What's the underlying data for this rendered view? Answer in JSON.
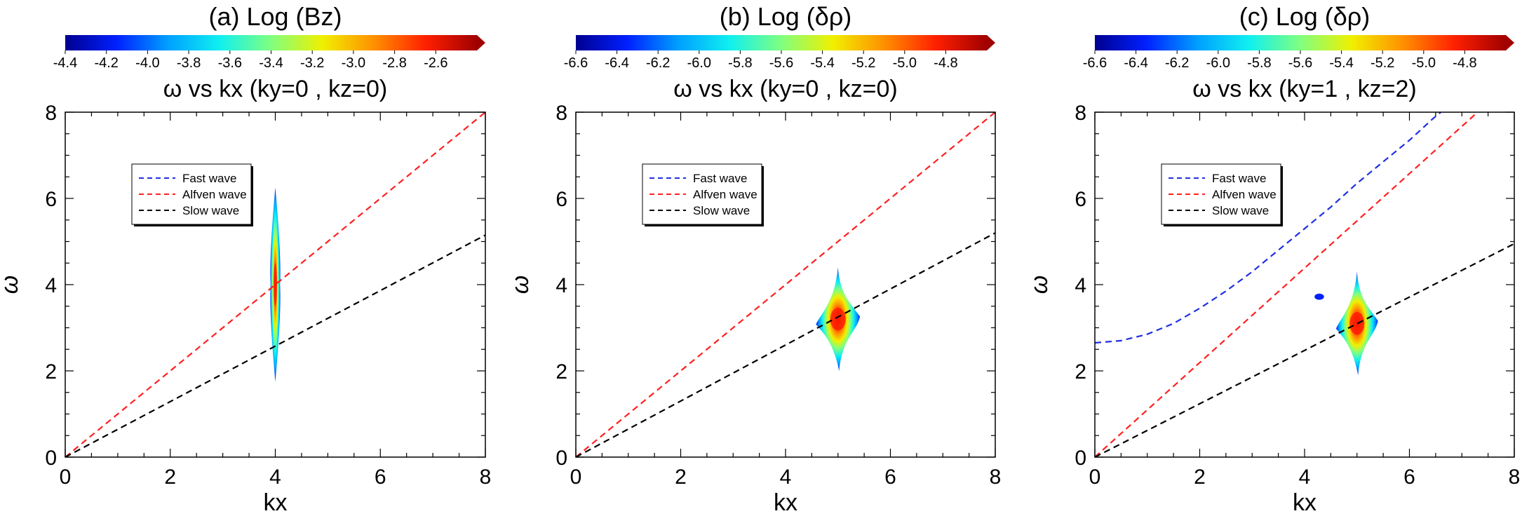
{
  "figure": {
    "legend_entries": [
      {
        "label": "Fast wave",
        "color": "#1f2fe0"
      },
      {
        "label": "Alfven wave",
        "color": "#ff2020"
      },
      {
        "label": "Slow wave",
        "color": "#000000"
      }
    ],
    "colormap": [
      "#00008f",
      "#0020ff",
      "#00a0ff",
      "#10f0f0",
      "#80ff80",
      "#f0f000",
      "#ff9000",
      "#ff2000",
      "#a00000"
    ]
  },
  "chart_data": [
    {
      "type": "contour",
      "title": "(a) Log (Bz)",
      "subtitle": "ω vs kx (ky=0  , kz=0)",
      "xlabel": "kx",
      "ylabel": "ω",
      "xlim": [
        0,
        8
      ],
      "ylim": [
        0,
        8
      ],
      "xticks": [
        "0",
        "2",
        "4",
        "6",
        "8"
      ],
      "yticks": [
        "0",
        "2",
        "4",
        "6",
        "8"
      ],
      "colorbar": {
        "range": [
          -4.4,
          -2.4
        ],
        "ticks": [
          "-4.4",
          "-4.2",
          "-4.0",
          "-3.8",
          "-3.6",
          "-3.4",
          "-3.2",
          "-3.0",
          "-2.8",
          "-2.6"
        ],
        "tick_values": [
          -4.4,
          -4.2,
          -4.0,
          -3.8,
          -3.6,
          -3.4,
          -3.2,
          -3.0,
          -2.8,
          -2.6
        ]
      },
      "series": [
        {
          "name": "Fast wave",
          "visible": false,
          "points": []
        },
        {
          "name": "Alfven wave",
          "points": [
            [
              0,
              0
            ],
            [
              8,
              8
            ]
          ]
        },
        {
          "name": "Slow wave",
          "points": [
            [
              0,
              0
            ],
            [
              8,
              5.15
            ]
          ]
        }
      ],
      "blobs": [
        {
          "center": [
            4.0,
            4.0
          ],
          "half_width": 0.09,
          "half_height": 2.25,
          "shape": "spindle"
        }
      ]
    },
    {
      "type": "contour",
      "title": "(b) Log (δρ)",
      "subtitle": "ω vs kx (ky=0  , kz=0)",
      "xlabel": "kx",
      "ylabel": "ω",
      "xlim": [
        0,
        8
      ],
      "ylim": [
        0,
        8
      ],
      "xticks": [
        "0",
        "2",
        "4",
        "6",
        "8"
      ],
      "yticks": [
        "0",
        "2",
        "4",
        "6",
        "8"
      ],
      "colorbar": {
        "range": [
          -6.6,
          -4.6
        ],
        "ticks": [
          "-6.6",
          "-6.4",
          "-6.2",
          "-6.0",
          "-5.8",
          "-5.6",
          "-5.4",
          "-5.2",
          "-5.0",
          "-4.8"
        ],
        "tick_values": [
          -6.6,
          -6.4,
          -6.2,
          -6.0,
          -5.8,
          -5.6,
          -5.4,
          -5.2,
          -5.0,
          -4.8
        ]
      },
      "series": [
        {
          "name": "Fast wave",
          "visible": false,
          "points": []
        },
        {
          "name": "Alfven wave",
          "points": [
            [
              0,
              0
            ],
            [
              8,
              8
            ]
          ]
        },
        {
          "name": "Slow wave",
          "points": [
            [
              0,
              0
            ],
            [
              8,
              5.2
            ]
          ]
        }
      ],
      "blobs": [
        {
          "center": [
            5.0,
            3.2
          ],
          "half_width": 0.42,
          "half_height": 1.2,
          "shape": "diamond"
        }
      ]
    },
    {
      "type": "contour",
      "title": "(c) Log (δρ)",
      "subtitle": "ω vs kx (ky=1  , kz=2)",
      "xlabel": "kx",
      "ylabel": "ω",
      "xlim": [
        0,
        8
      ],
      "ylim": [
        0,
        8
      ],
      "xticks": [
        "0",
        "2",
        "4",
        "6",
        "8"
      ],
      "yticks": [
        "0",
        "2",
        "4",
        "6",
        "8"
      ],
      "colorbar": {
        "range": [
          -6.6,
          -4.6
        ],
        "ticks": [
          "-6.6",
          "-6.4",
          "-6.2",
          "-6.0",
          "-5.8",
          "-5.6",
          "-5.4",
          "-5.2",
          "-5.0",
          "-4.8"
        ],
        "tick_values": [
          -6.6,
          -6.4,
          -6.2,
          -6.0,
          -5.8,
          -5.6,
          -5.4,
          -5.2,
          -5.0,
          -4.8
        ]
      },
      "series": [
        {
          "name": "Fast wave",
          "points": [
            [
              0,
              2.65
            ],
            [
              0.5,
              2.7
            ],
            [
              1,
              2.85
            ],
            [
              1.5,
              3.1
            ],
            [
              2,
              3.45
            ],
            [
              2.5,
              3.85
            ],
            [
              3,
              4.3
            ],
            [
              3.5,
              4.8
            ],
            [
              4,
              5.3
            ],
            [
              4.5,
              5.8
            ],
            [
              5,
              6.35
            ],
            [
              5.5,
              6.85
            ],
            [
              6,
              7.35
            ],
            [
              6.45,
              7.85
            ],
            [
              6.6,
              8.0
            ]
          ]
        },
        {
          "name": "Alfven wave",
          "points": [
            [
              0,
              0
            ],
            [
              7.3,
              8.0
            ]
          ]
        },
        {
          "name": "Slow wave",
          "points": [
            [
              0,
              0
            ],
            [
              8,
              4.95
            ]
          ]
        }
      ],
      "blobs": [
        {
          "center": [
            5.0,
            3.1
          ],
          "half_width": 0.4,
          "half_height": 1.2,
          "shape": "diamond"
        },
        {
          "center": [
            4.28,
            3.72
          ],
          "half_width": 0.09,
          "half_height": 0.09,
          "shape": "speck"
        }
      ]
    }
  ]
}
